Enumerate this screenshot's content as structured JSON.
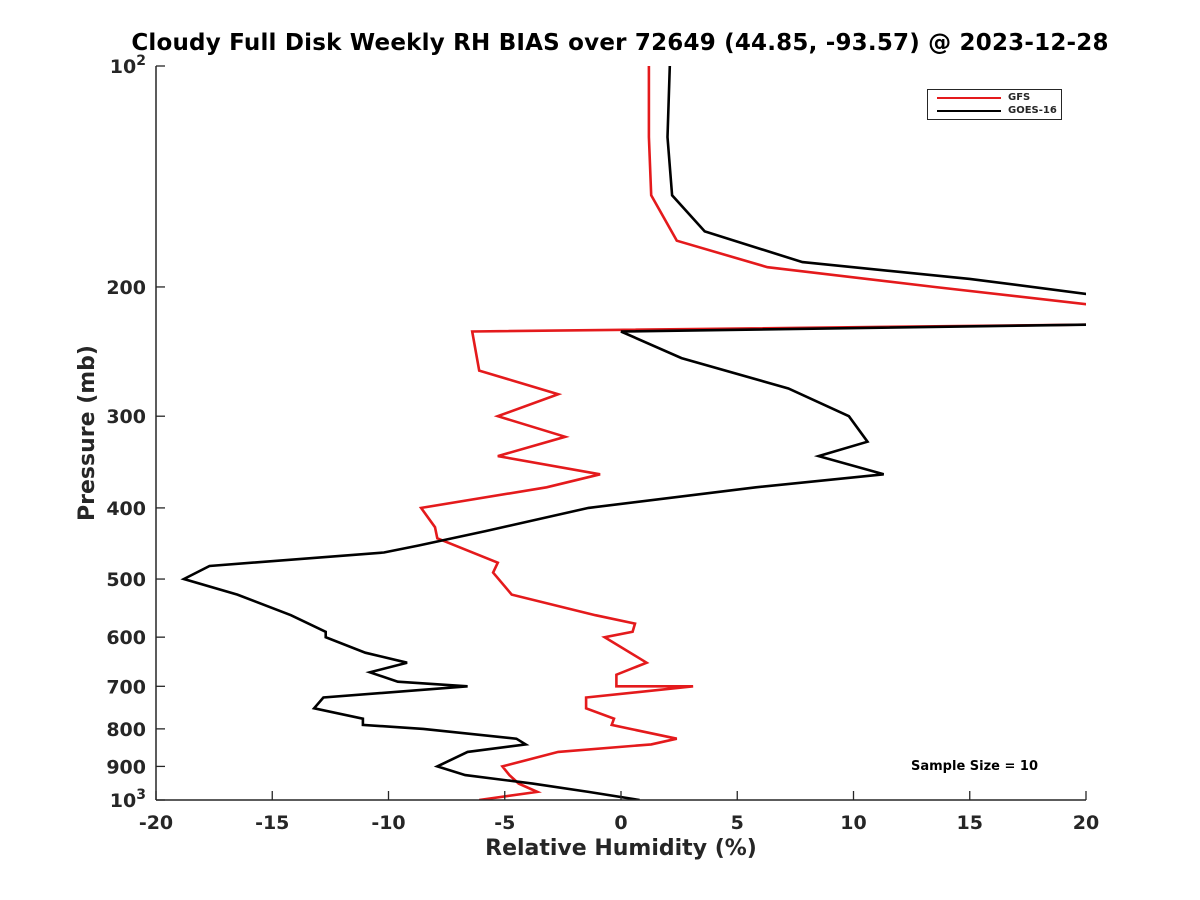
{
  "chart_data": {
    "type": "line",
    "title": "Cloudy Full Disk Weekly RH BIAS over 72649 (44.85, -93.57) @ 2023-12-28",
    "xlabel": "Relative Humidity (%)",
    "ylabel": "Pressure (mb)",
    "xlim": [
      -20,
      20
    ],
    "ylim": [
      100,
      1000
    ],
    "y_scale": "log",
    "y_reversed": true,
    "grid": false,
    "legend_position": "top-right",
    "x_ticks": [
      "-20",
      "-15",
      "-10",
      "-5",
      "0",
      "5",
      "10",
      "15",
      "20"
    ],
    "x_tick_values": [
      -20,
      -15,
      -10,
      -5,
      0,
      5,
      10,
      15,
      20
    ],
    "y_ticks": [
      {
        "value": 100,
        "base": "10",
        "exp": "2"
      },
      {
        "value": 200,
        "label": "200"
      },
      {
        "value": 300,
        "label": "300"
      },
      {
        "value": 400,
        "label": "400"
      },
      {
        "value": 500,
        "label": "500"
      },
      {
        "value": 600,
        "label": "600"
      },
      {
        "value": 700,
        "label": "700"
      },
      {
        "value": 800,
        "label": "800"
      },
      {
        "value": 900,
        "label": "900"
      },
      {
        "value": 1000,
        "base": "10",
        "exp": "3"
      }
    ],
    "annotation": "Sample Size = 10",
    "series": [
      {
        "name": "GFS",
        "color": "#e41a1c",
        "points": [
          [
            1.2,
            100
          ],
          [
            1.2,
            125
          ],
          [
            1.3,
            150
          ],
          [
            2.4,
            173
          ],
          [
            6.3,
            188
          ],
          [
            13.5,
            200
          ],
          [
            20.5,
            212
          ],
          [
            20.5,
            225
          ],
          [
            -6.4,
            230
          ],
          [
            -6.1,
            260
          ],
          [
            -2.7,
            280
          ],
          [
            -5.3,
            300
          ],
          [
            -2.4,
            320
          ],
          [
            -5.3,
            340
          ],
          [
            -0.9,
            360
          ],
          [
            -3.2,
            375
          ],
          [
            -8.6,
            400
          ],
          [
            -8.0,
            425
          ],
          [
            -7.9,
            440
          ],
          [
            -5.3,
            475
          ],
          [
            -5.5,
            490
          ],
          [
            -4.7,
            525
          ],
          [
            -1.1,
            560
          ],
          [
            0.6,
            575
          ],
          [
            0.5,
            590
          ],
          [
            -0.7,
            600
          ],
          [
            1.1,
            650
          ],
          [
            -0.2,
            675
          ],
          [
            -0.2,
            700
          ],
          [
            3.1,
            700
          ],
          [
            -1.5,
            725
          ],
          [
            -1.5,
            750
          ],
          [
            -0.3,
            775
          ],
          [
            -0.4,
            790
          ],
          [
            0.4,
            800
          ],
          [
            2.4,
            825
          ],
          [
            1.3,
            840
          ],
          [
            -2.7,
            860
          ],
          [
            -5.1,
            900
          ],
          [
            -4.8,
            925
          ],
          [
            -4.4,
            950
          ],
          [
            -3.6,
            975
          ],
          [
            -6.1,
            1000
          ]
        ]
      },
      {
        "name": "GOES-16",
        "color": "#000000",
        "points": [
          [
            2.1,
            100
          ],
          [
            2.0,
            125
          ],
          [
            2.2,
            150
          ],
          [
            3.6,
            168
          ],
          [
            7.8,
            185
          ],
          [
            15.0,
            195
          ],
          [
            20.3,
            205
          ],
          [
            20.5,
            225
          ],
          [
            0,
            230
          ],
          [
            2.6,
            250
          ],
          [
            7.2,
            275
          ],
          [
            9.8,
            300
          ],
          [
            10.6,
            325
          ],
          [
            8.5,
            340
          ],
          [
            11.3,
            360
          ],
          [
            5.8,
            375
          ],
          [
            -1.4,
            400
          ],
          [
            -5.8,
            430
          ],
          [
            -8.7,
            450
          ],
          [
            -10.2,
            460
          ],
          [
            -17.7,
            480
          ],
          [
            -18.8,
            500
          ],
          [
            -16.5,
            525
          ],
          [
            -14.2,
            560
          ],
          [
            -12.7,
            590
          ],
          [
            -12.7,
            600
          ],
          [
            -11.0,
            630
          ],
          [
            -9.2,
            650
          ],
          [
            -10.8,
            670
          ],
          [
            -9.6,
            690
          ],
          [
            -6.6,
            700
          ],
          [
            -12.8,
            725
          ],
          [
            -13.2,
            750
          ],
          [
            -11.1,
            775
          ],
          [
            -11.1,
            790
          ],
          [
            -8.5,
            800
          ],
          [
            -4.5,
            825
          ],
          [
            -4.1,
            840
          ],
          [
            -6.6,
            860
          ],
          [
            -7.9,
            900
          ],
          [
            -6.7,
            925
          ],
          [
            -3.8,
            950
          ],
          [
            -1.4,
            975
          ],
          [
            0.8,
            1000
          ]
        ]
      }
    ]
  }
}
